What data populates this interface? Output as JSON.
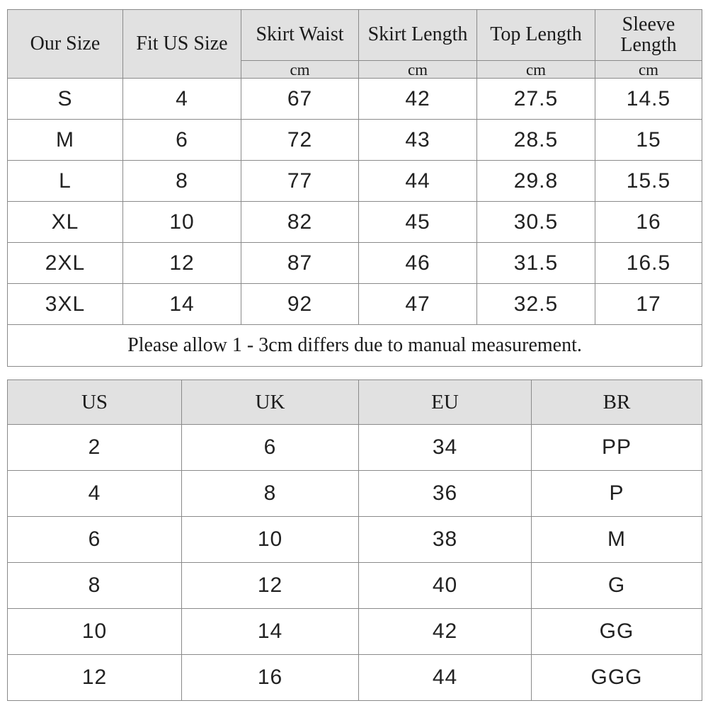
{
  "size_table": {
    "columns": [
      {
        "label": "Our Size",
        "unit": ""
      },
      {
        "label": "Fit US Size",
        "unit": ""
      },
      {
        "label": "Skirt Waist",
        "unit": "cm"
      },
      {
        "label": "Skirt Length",
        "unit": "cm"
      },
      {
        "label": "Top Length",
        "unit": "cm"
      },
      {
        "label": "Sleeve Length",
        "unit": "cm"
      }
    ],
    "rows": [
      [
        "S",
        "4",
        "67",
        "42",
        "27.5",
        "14.5"
      ],
      [
        "M",
        "6",
        "72",
        "43",
        "28.5",
        "15"
      ],
      [
        "L",
        "8",
        "77",
        "44",
        "29.8",
        "15.5"
      ],
      [
        "XL",
        "10",
        "82",
        "45",
        "30.5",
        "16"
      ],
      [
        "2XL",
        "12",
        "87",
        "46",
        "31.5",
        "16.5"
      ],
      [
        "3XL",
        "14",
        "92",
        "47",
        "32.5",
        "17"
      ]
    ],
    "note": "Please allow 1 - 3cm differs due to manual measurement."
  },
  "conversion_table": {
    "columns": [
      "US",
      "UK",
      "EU",
      "BR"
    ],
    "rows": [
      [
        "2",
        "6",
        "34",
        "PP"
      ],
      [
        "4",
        "8",
        "36",
        "P"
      ],
      [
        "6",
        "10",
        "38",
        "M"
      ],
      [
        "8",
        "12",
        "40",
        "G"
      ],
      [
        "10",
        "14",
        "42",
        "GG"
      ],
      [
        "12",
        "16",
        "44",
        "GGG"
      ]
    ]
  },
  "colors": {
    "header_bg": "#e1e1e1",
    "border": "#8a8a8a",
    "text": "#1b1b1b",
    "background": "#ffffff"
  }
}
